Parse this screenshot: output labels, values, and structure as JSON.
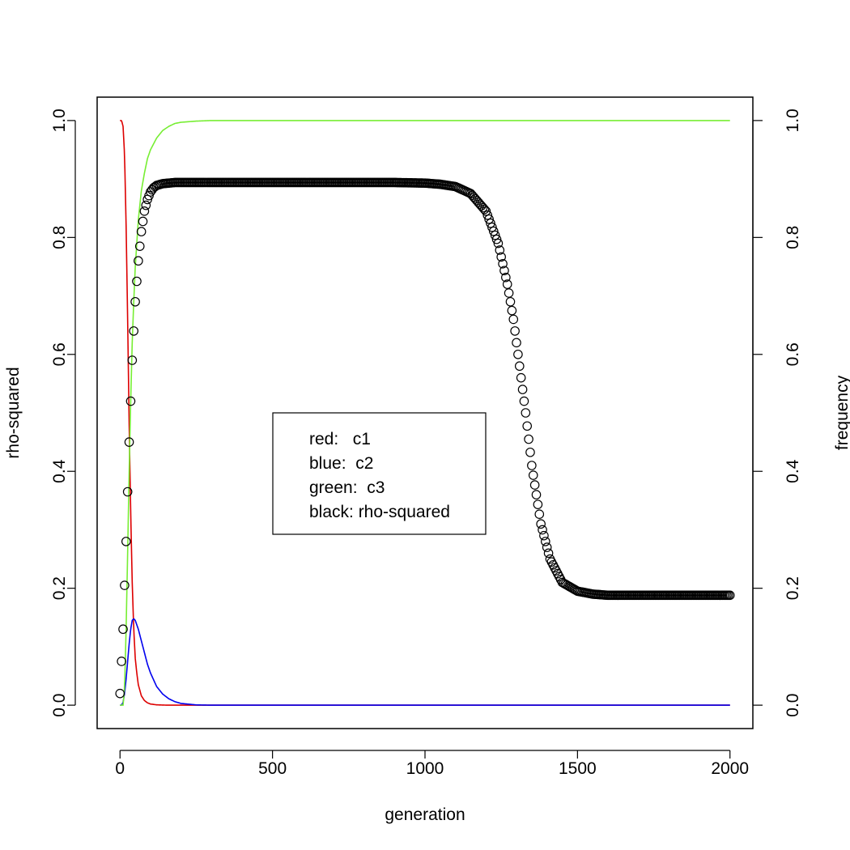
{
  "chart_data": {
    "type": "line",
    "xlabel": "generation",
    "ylabel_left": "rho-squared",
    "ylabel_right": "frequency",
    "xlim": [
      -75,
      2075
    ],
    "ylim": [
      -0.04,
      1.04
    ],
    "x_ticks": [
      0,
      500,
      1000,
      1500,
      2000
    ],
    "x_tick_labels": [
      "0",
      "500",
      "1000",
      "1500",
      "2000"
    ],
    "y_ticks": [
      0.0,
      0.2,
      0.4,
      0.6,
      0.8,
      1.0
    ],
    "y_tick_labels": [
      "0.0",
      "0.2",
      "0.4",
      "0.6",
      "0.8",
      "1.0"
    ],
    "grid": false,
    "legend": {
      "placement": "center",
      "entries": [
        "red:   c1",
        "blue:  c2",
        "green:  c3",
        "black: rho-squared"
      ]
    },
    "series": [
      {
        "color": "#dd0000",
        "marker": "line",
        "x": [
          0,
          5,
          10,
          15,
          20,
          25,
          30,
          35,
          40,
          45,
          50,
          55,
          60,
          70,
          80,
          90,
          100,
          120,
          150,
          200,
          300,
          500,
          1000,
          2000
        ],
        "y": [
          1.0,
          1.0,
          0.99,
          0.94,
          0.82,
          0.66,
          0.48,
          0.33,
          0.21,
          0.13,
          0.08,
          0.055,
          0.035,
          0.016,
          0.008,
          0.004,
          0.002,
          0.0006,
          0.0001,
          0.0,
          0.0,
          0.0,
          0.0,
          0.0
        ]
      },
      {
        "color": "#0000ee",
        "marker": "line",
        "x": [
          0,
          5,
          10,
          15,
          20,
          25,
          30,
          35,
          40,
          45,
          50,
          60,
          70,
          80,
          90,
          100,
          120,
          140,
          160,
          180,
          200,
          250,
          300,
          400,
          1000,
          2000
        ],
        "y": [
          0.0,
          0.0,
          0.005,
          0.02,
          0.045,
          0.075,
          0.105,
          0.13,
          0.145,
          0.148,
          0.145,
          0.13,
          0.11,
          0.09,
          0.07,
          0.055,
          0.032,
          0.019,
          0.011,
          0.006,
          0.003,
          0.0005,
          0.0,
          0.0,
          0.0,
          0.0
        ]
      },
      {
        "color": "#77ee33",
        "marker": "line",
        "x": [
          0,
          5,
          10,
          15,
          20,
          25,
          30,
          35,
          40,
          45,
          50,
          60,
          70,
          80,
          90,
          100,
          120,
          140,
          160,
          180,
          200,
          250,
          300,
          400,
          1000,
          2000
        ],
        "y": [
          0.0,
          0.0,
          0.0,
          0.03,
          0.13,
          0.26,
          0.4,
          0.52,
          0.62,
          0.69,
          0.75,
          0.83,
          0.88,
          0.91,
          0.935,
          0.95,
          0.97,
          0.983,
          0.99,
          0.995,
          0.997,
          0.999,
          1.0,
          1.0,
          1.0,
          1.0
        ]
      },
      {
        "color": "#000000",
        "marker": "open-circle",
        "x": [
          0,
          10,
          20,
          30,
          40,
          50,
          60,
          70,
          80,
          90,
          100,
          110,
          120,
          140,
          160,
          180,
          200,
          300,
          600,
          900,
          1000,
          1050,
          1100,
          1150,
          1200,
          1240,
          1270,
          1290,
          1310,
          1330,
          1350,
          1380,
          1410,
          1450,
          1500,
          1550,
          1600,
          1700,
          1800,
          1900,
          2000
        ],
        "y": [
          0.02,
          0.13,
          0.28,
          0.45,
          0.59,
          0.69,
          0.76,
          0.81,
          0.845,
          0.865,
          0.878,
          0.885,
          0.889,
          0.892,
          0.893,
          0.894,
          0.894,
          0.894,
          0.894,
          0.894,
          0.893,
          0.891,
          0.887,
          0.875,
          0.845,
          0.79,
          0.72,
          0.66,
          0.58,
          0.5,
          0.41,
          0.31,
          0.25,
          0.21,
          0.195,
          0.19,
          0.188,
          0.188,
          0.188,
          0.188,
          0.188
        ]
      }
    ]
  }
}
